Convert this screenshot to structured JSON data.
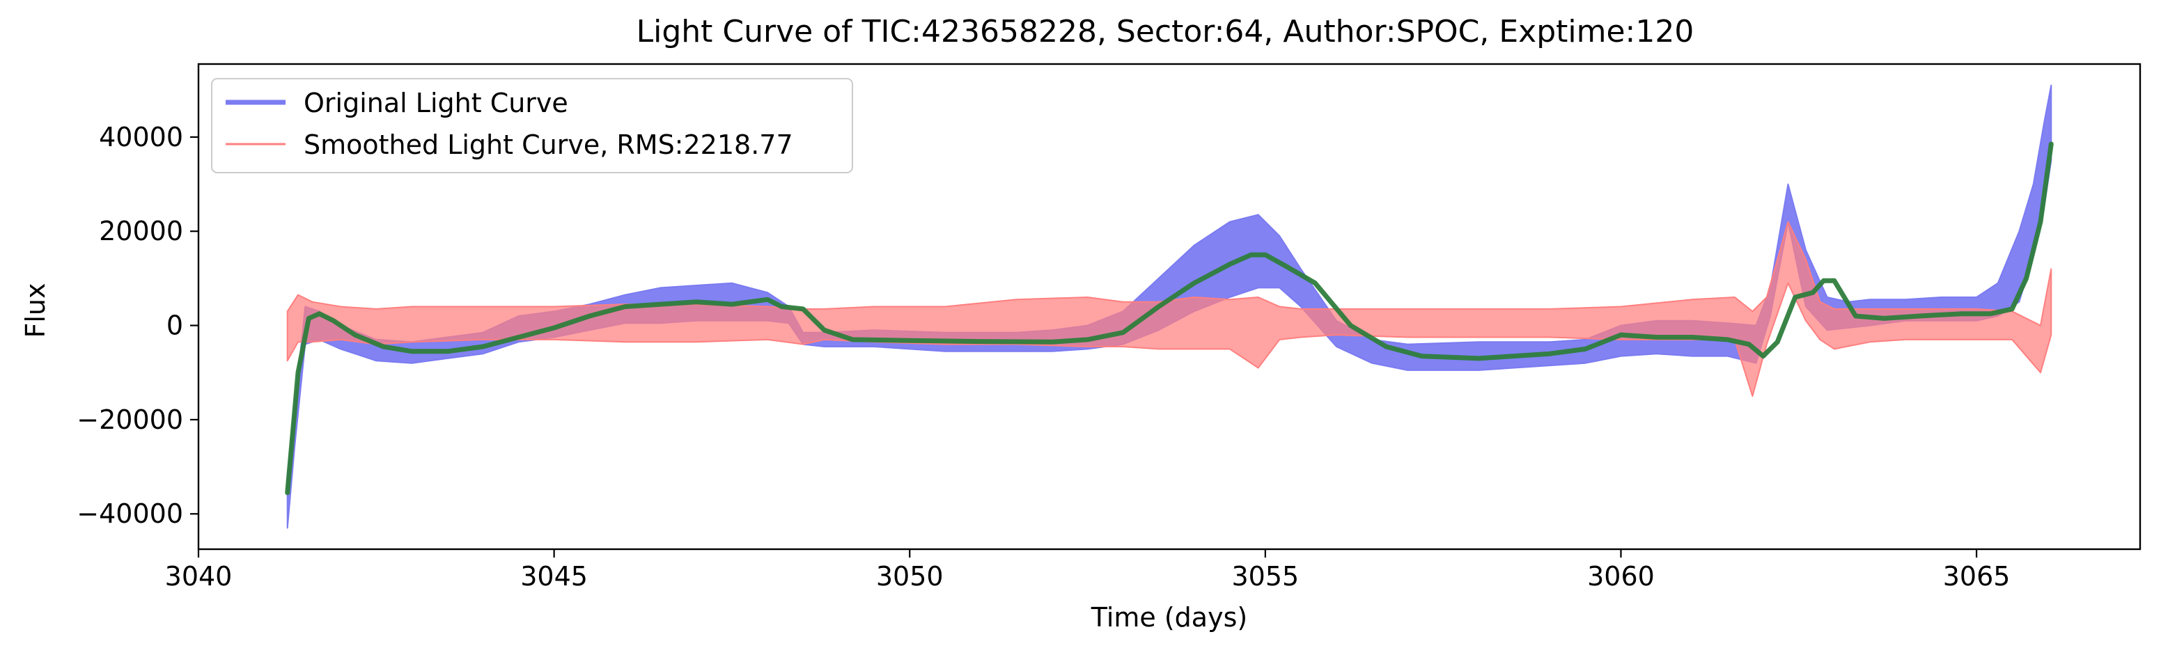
{
  "chart_data": {
    "type": "line",
    "title": "Light Curve of TIC:423658228, Sector:64, Author:SPOC, Exptime:120",
    "xlabel": "Time (days)",
    "ylabel": "Flux",
    "xlim": [
      3040,
      3067.3
    ],
    "ylim": [
      -47500,
      55500
    ],
    "xticks": [
      3040,
      3045,
      3050,
      3055,
      3060,
      3065
    ],
    "xtick_labels": [
      "3040",
      "3045",
      "3050",
      "3055",
      "3060",
      "3065"
    ],
    "yticks": [
      -40000,
      -20000,
      0,
      20000,
      40000
    ],
    "ytick_labels": [
      "−40000",
      "−20000",
      "0",
      "20000",
      "40000"
    ],
    "grid": false,
    "legend": {
      "position": "upper-left",
      "entries": [
        {
          "label": "Original Light Curve",
          "color": "#7b7bf2"
        },
        {
          "label": "Smoothed Light Curve, RMS:2218.77",
          "color": "#ff7f7f"
        }
      ]
    },
    "series": [
      {
        "name": "Original Light Curve",
        "color": "#7b7bf2",
        "band": true,
        "x": [
          3041.25,
          3041.35,
          3041.5,
          3041.7,
          3042.0,
          3042.5,
          3043.0,
          3043.5,
          3044.0,
          3044.5,
          3045.0,
          3045.5,
          3046.0,
          3046.5,
          3047.0,
          3047.5,
          3048.0,
          3048.3,
          3048.5,
          3048.8,
          3049.5,
          3050.5,
          3051.5,
          3052.0,
          3052.5,
          3053.0,
          3053.5,
          3054.0,
          3054.5,
          3054.9,
          3055.2,
          3055.5,
          3056.0,
          3056.5,
          3057.0,
          3058.0,
          3059.0,
          3059.5,
          3060.0,
          3060.5,
          3061.0,
          3061.5,
          3061.9,
          3062.1,
          3062.35,
          3062.6,
          3062.9,
          3063.2,
          3063.5,
          3064.0,
          3064.5,
          3065.0,
          3065.3,
          3065.6,
          3065.8,
          3065.95,
          3066.05
        ],
        "lower": [
          -43000,
          -26000,
          -4000,
          -3000,
          -5000,
          -7500,
          -8000,
          -7000,
          -6000,
          -3500,
          -2500,
          -1000,
          500,
          500,
          1000,
          1000,
          1000,
          500,
          -4000,
          -4500,
          -4500,
          -5500,
          -5500,
          -5500,
          -5000,
          -4000,
          -1000,
          3000,
          6000,
          8000,
          8000,
          4000,
          -4500,
          -8000,
          -9500,
          -9500,
          -8500,
          -8000,
          -6500,
          -6000,
          -6500,
          -6500,
          -8000,
          2000,
          22000,
          4000,
          -1000,
          -500,
          0,
          1000,
          1000,
          1000,
          2000,
          5000,
          15000,
          25000,
          35000
        ],
        "upper": [
          -32000,
          -18000,
          4000,
          3000,
          0,
          -3000,
          -3500,
          -2500,
          -1500,
          2000,
          3000,
          4500,
          6500,
          8000,
          8500,
          9000,
          7000,
          4000,
          -1500,
          -1500,
          -1000,
          -1500,
          -1500,
          -1000,
          0,
          3000,
          10000,
          17000,
          22000,
          23500,
          19000,
          12000,
          1000,
          -3000,
          -4000,
          -3500,
          -3500,
          -3000,
          0,
          1000,
          1000,
          500,
          0,
          8000,
          30000,
          16000,
          6000,
          5000,
          5500,
          5500,
          6000,
          6000,
          9000,
          20000,
          30000,
          43000,
          51000
        ]
      },
      {
        "name": "Smoothed Light Curve, RMS:2218.77",
        "color": "#ff7f7f",
        "band": true,
        "x": [
          3041.25,
          3041.4,
          3041.6,
          3042.0,
          3042.5,
          3043.0,
          3044.0,
          3045.0,
          3046.0,
          3047.0,
          3048.0,
          3048.5,
          3048.8,
          3049.5,
          3050.5,
          3051.5,
          3052.5,
          3053.0,
          3053.5,
          3054.0,
          3054.5,
          3054.9,
          3055.2,
          3055.5,
          3056.0,
          3057.0,
          3058.0,
          3059.0,
          3060.0,
          3061.0,
          3061.6,
          3061.85,
          3062.05,
          3062.35,
          3062.6,
          3062.8,
          3063.0,
          3063.5,
          3064.0,
          3065.0,
          3065.5,
          3065.9,
          3066.05
        ],
        "lower": [
          -7500,
          -3500,
          -3500,
          -3000,
          -4000,
          -3500,
          -3000,
          -3000,
          -3500,
          -3500,
          -3000,
          -4000,
          -3000,
          -3500,
          -4000,
          -4000,
          -4500,
          -4500,
          -5000,
          -5000,
          -5000,
          -9000,
          -3000,
          -2500,
          -2000,
          -2500,
          -2500,
          -2500,
          -3000,
          -3000,
          -3000,
          -15000,
          -4000,
          9000,
          1000,
          -3000,
          -5000,
          -3500,
          -3000,
          -3000,
          -3000,
          -10000,
          -2000
        ],
        "upper": [
          3000,
          6500,
          5000,
          4000,
          3500,
          4000,
          4000,
          4000,
          4500,
          4500,
          4000,
          3500,
          3500,
          4000,
          4000,
          5500,
          6000,
          5000,
          5000,
          6000,
          5500,
          6000,
          4000,
          3500,
          3500,
          3500,
          3500,
          3500,
          4000,
          5500,
          6000,
          3000,
          6000,
          22000,
          14000,
          5000,
          3500,
          3500,
          3500,
          3500,
          3000,
          0,
          12000
        ]
      },
      {
        "name": "",
        "color": "#2e7d3c",
        "x": [
          3041.25,
          3041.4,
          3041.55,
          3041.7,
          3041.9,
          3042.2,
          3042.6,
          3043.0,
          3043.5,
          3044.0,
          3044.5,
          3045.0,
          3045.5,
          3046.0,
          3046.5,
          3047.0,
          3047.5,
          3048.0,
          3048.2,
          3048.5,
          3048.8,
          3049.2,
          3050.0,
          3051.0,
          3052.0,
          3052.5,
          3053.0,
          3053.5,
          3054.0,
          3054.5,
          3054.8,
          3055.0,
          3055.3,
          3055.7,
          3056.2,
          3056.7,
          3057.2,
          3058.0,
          3059.0,
          3059.5,
          3060.0,
          3060.5,
          3061.0,
          3061.5,
          3061.8,
          3062.0,
          3062.2,
          3062.45,
          3062.7,
          3062.85,
          3063.0,
          3063.3,
          3063.7,
          3064.2,
          3064.8,
          3065.2,
          3065.5,
          3065.7,
          3065.9,
          3066.05
        ],
        "y": [
          -35500,
          -10000,
          1500,
          2500,
          1000,
          -2000,
          -4500,
          -5500,
          -5500,
          -4500,
          -2500,
          -500,
          2000,
          4000,
          4500,
          5000,
          4500,
          5500,
          4000,
          3500,
          -1000,
          -3000,
          -3200,
          -3400,
          -3500,
          -3000,
          -1500,
          4000,
          9000,
          13000,
          15000,
          15000,
          12500,
          9000,
          0,
          -4500,
          -6500,
          -7000,
          -6000,
          -5000,
          -2000,
          -2500,
          -2500,
          -3000,
          -4000,
          -6500,
          -3500,
          6000,
          7000,
          9500,
          9500,
          2000,
          1500,
          2000,
          2500,
          2500,
          3500,
          10000,
          22000,
          38500
        ]
      }
    ]
  }
}
